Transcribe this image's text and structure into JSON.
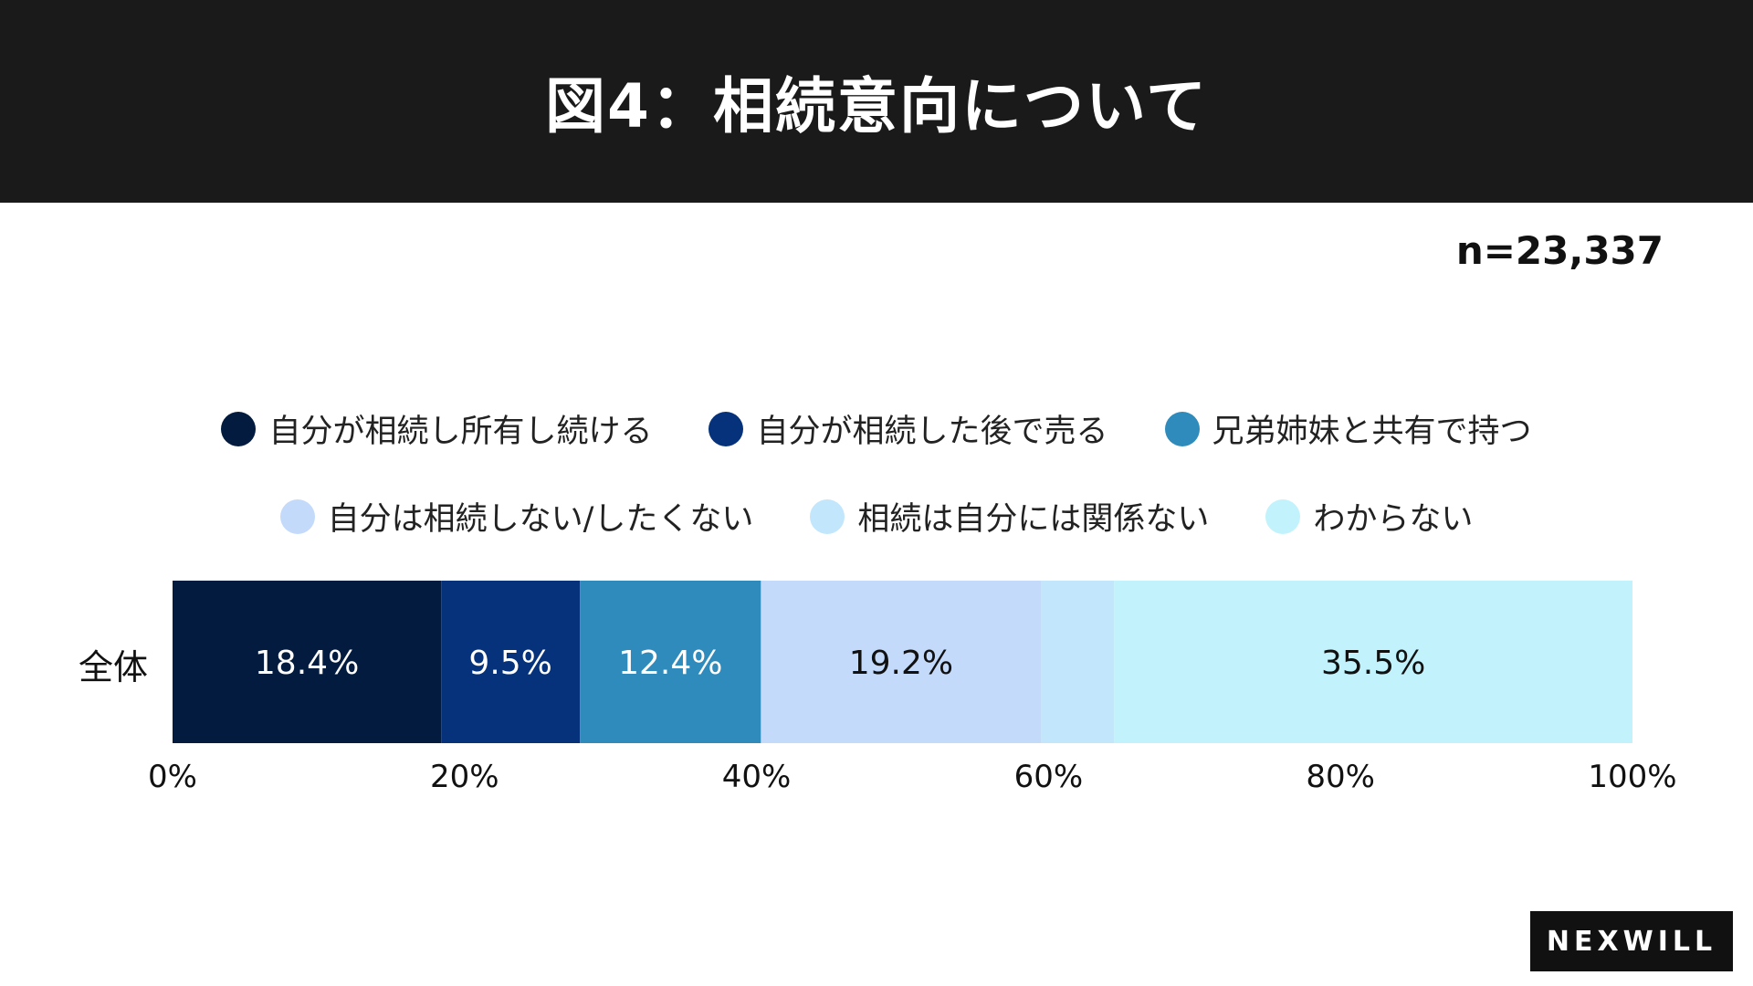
{
  "header": {
    "title": "図4：相続意向について"
  },
  "sample_size": "n=23,337",
  "brand": {
    "logo_text": "NEXWILL"
  },
  "colors": {
    "header_bg": "#1a1a1a",
    "series": [
      "#021b3e",
      "#05327a",
      "#2e8bbb",
      "#c4dafb",
      "#c2e6fb",
      "#c2f3fc"
    ]
  },
  "chart_data": {
    "type": "bar",
    "orientation": "horizontal",
    "stacked": true,
    "title": "図4：相続意向について",
    "categories": [
      "全体"
    ],
    "series": [
      {
        "name": "自分が相続し所有し続ける",
        "values": [
          18.4
        ],
        "label": "18.4%"
      },
      {
        "name": "自分が相続した後で売る",
        "values": [
          9.5
        ],
        "label": "9.5%"
      },
      {
        "name": "兄弟姉妹と共有で持つ",
        "values": [
          12.4
        ],
        "label": "12.4%"
      },
      {
        "name": "自分は相続しない/したくない",
        "values": [
          19.2
        ],
        "label": "19.2%"
      },
      {
        "name": "相続は自分には関係ない",
        "values": [
          5.0
        ],
        "label": ""
      },
      {
        "name": "わからない",
        "values": [
          35.5
        ],
        "label": "35.5%"
      }
    ],
    "xlim": [
      0,
      100
    ],
    "x_ticks": [
      "0%",
      "20%",
      "40%",
      "60%",
      "80%",
      "100%"
    ],
    "xlabel": "",
    "ylabel": "",
    "legend_position": "top",
    "grid": false
  }
}
